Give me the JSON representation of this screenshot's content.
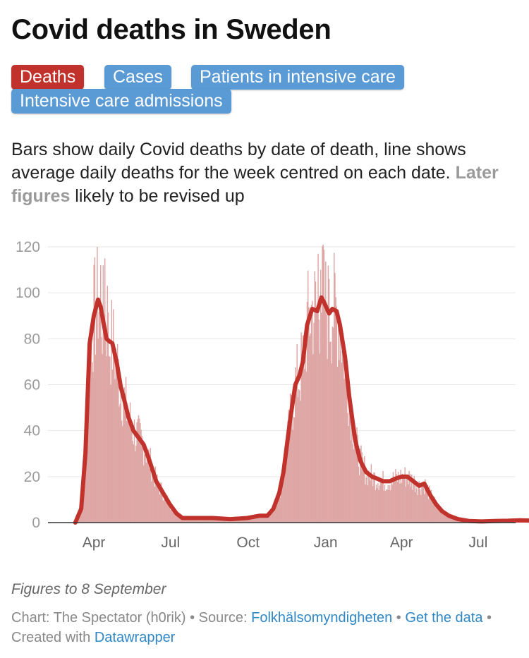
{
  "title": "Covid deaths in Sweden",
  "buttons": [
    {
      "label": "Deaths",
      "active": true
    },
    {
      "label": "Cases",
      "active": false
    },
    {
      "label": "Patients in intensive care",
      "active": false
    },
    {
      "label": "Intensive care admissions",
      "active": false
    }
  ],
  "description": {
    "main": "Bars show daily Covid deaths by date of death, line shows average daily deaths for the week centred on each date.",
    "highlight": "Later figures",
    "rest": " likely to be revised up"
  },
  "notes": "Figures to 8 September",
  "footer": {
    "chart_by": "Chart: The Spectator (h0rik)",
    "sep1": " • Source: ",
    "source": "Folkhälsomyndigheten",
    "sep2": " • ",
    "get_data": "Get the data",
    "sep3": " • Created with ",
    "created_with": "Datawrapper"
  },
  "colors": {
    "bar": "#dea7a5",
    "line": "#c0322b",
    "grid": "#e6e6e6",
    "axis": "#333333",
    "active_button": "#c0322b",
    "button": "#5b9bd5",
    "link": "#2f87c6"
  },
  "chart_data": {
    "type": "bar",
    "title": "Covid deaths in Sweden",
    "xlabel": "",
    "ylabel": "",
    "ylim": [
      0,
      120
    ],
    "yticks": [
      0,
      20,
      40,
      60,
      80,
      100,
      120
    ],
    "x_range": [
      "2020-03-01",
      "2021-09-08"
    ],
    "x_ticks": [
      {
        "label": "Apr",
        "date": "2020-04-01"
      },
      {
        "label": "Jul",
        "date": "2020-07-01"
      },
      {
        "label": "Oct",
        "date": "2020-10-01"
      },
      {
        "label": "Jan",
        "date": "2021-01-01"
      },
      {
        "label": "Apr",
        "date": "2021-04-01"
      },
      {
        "label": "Jul",
        "date": "2021-07-01"
      }
    ],
    "series": [
      {
        "name": "Daily deaths (bars)",
        "style": "bar",
        "days_from": "2020-03-10",
        "approx_values_by_day": "derived by interpolating the 7-day average keypoints with day-to-day noise; notable spikes ~115 (mid-Apr 2020) and ~121 (late Dec 2020)"
      },
      {
        "name": "7-day average",
        "style": "line",
        "points": [
          [
            "2020-03-10",
            0
          ],
          [
            "2020-03-17",
            6
          ],
          [
            "2020-03-22",
            30
          ],
          [
            "2020-03-27",
            78
          ],
          [
            "2020-04-01",
            90
          ],
          [
            "2020-04-06",
            97
          ],
          [
            "2020-04-09",
            94
          ],
          [
            "2020-04-13",
            86
          ],
          [
            "2020-04-16",
            80
          ],
          [
            "2020-04-19",
            79
          ],
          [
            "2020-04-23",
            78
          ],
          [
            "2020-04-28",
            70
          ],
          [
            "2020-05-03",
            59
          ],
          [
            "2020-05-08",
            52
          ],
          [
            "2020-05-12",
            46
          ],
          [
            "2020-05-18",
            40
          ],
          [
            "2020-05-24",
            37
          ],
          [
            "2020-05-30",
            34
          ],
          [
            "2020-06-06",
            27
          ],
          [
            "2020-06-14",
            18
          ],
          [
            "2020-06-22",
            13
          ],
          [
            "2020-06-30",
            8
          ],
          [
            "2020-07-08",
            4
          ],
          [
            "2020-07-15",
            2
          ],
          [
            "2020-08-01",
            2
          ],
          [
            "2020-08-20",
            2
          ],
          [
            "2020-09-10",
            1.5
          ],
          [
            "2020-09-30",
            2
          ],
          [
            "2020-10-15",
            3
          ],
          [
            "2020-10-24",
            3
          ],
          [
            "2020-10-31",
            6
          ],
          [
            "2020-11-07",
            13
          ],
          [
            "2020-11-12",
            22
          ],
          [
            "2020-11-20",
            45
          ],
          [
            "2020-11-26",
            60
          ],
          [
            "2020-12-01",
            64
          ],
          [
            "2020-12-05",
            70
          ],
          [
            "2020-12-10",
            86
          ],
          [
            "2020-12-16",
            93
          ],
          [
            "2020-12-22",
            92
          ],
          [
            "2020-12-27",
            98
          ],
          [
            "2020-12-30",
            96
          ],
          [
            "2021-01-05",
            91
          ],
          [
            "2021-01-09",
            93
          ],
          [
            "2021-01-14",
            92
          ],
          [
            "2021-01-18",
            86
          ],
          [
            "2021-01-24",
            72
          ],
          [
            "2021-01-29",
            55
          ],
          [
            "2021-02-05",
            36
          ],
          [
            "2021-02-11",
            27
          ],
          [
            "2021-02-18",
            22
          ],
          [
            "2021-02-25",
            20
          ],
          [
            "2021-03-04",
            19
          ],
          [
            "2021-03-10",
            18
          ],
          [
            "2021-03-18",
            18
          ],
          [
            "2021-03-24",
            19
          ],
          [
            "2021-04-01",
            20
          ],
          [
            "2021-04-08",
            20
          ],
          [
            "2021-04-15",
            18
          ],
          [
            "2021-04-22",
            16
          ],
          [
            "2021-04-28",
            17
          ],
          [
            "2021-05-05",
            12
          ],
          [
            "2021-05-12",
            8
          ],
          [
            "2021-05-19",
            5
          ],
          [
            "2021-05-27",
            3
          ],
          [
            "2021-06-07",
            1.5
          ],
          [
            "2021-06-20",
            0.7
          ],
          [
            "2021-07-05",
            0.5
          ],
          [
            "2021-07-20",
            0.7
          ],
          [
            "2021-08-05",
            0.8
          ],
          [
            "2021-08-20",
            1
          ],
          [
            "2021-09-05",
            0.8
          ]
        ]
      }
    ]
  }
}
